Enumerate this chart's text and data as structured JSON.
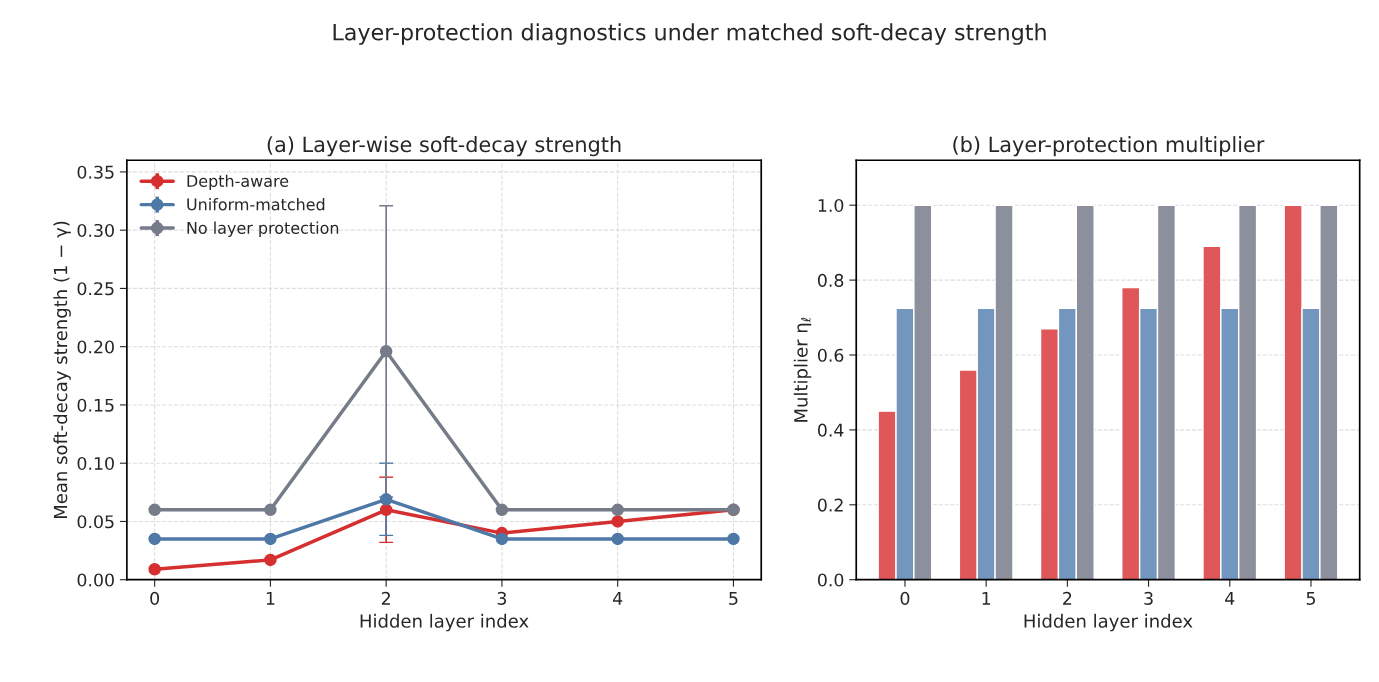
{
  "chart_data": [
    {
      "type": "line",
      "title": "(a) Layer-wise soft-decay strength",
      "annotations": [
        "Layer-protection diagnostics under matched soft-decay strength"
      ],
      "xlabel": "Hidden layer index",
      "ylabel": "Mean soft-decay strength (1 − γ)",
      "x": [
        0,
        1,
        2,
        3,
        4,
        5
      ],
      "xlim": [
        -0.24,
        5.24
      ],
      "xticks": [
        0,
        1,
        2,
        3,
        4,
        5
      ],
      "ylim": [
        0,
        0.36
      ],
      "yticks": [
        {
          "value": 0,
          "label": "0.00"
        },
        0.05,
        {
          "value": 0.1,
          "label": "0.10"
        },
        0.15,
        {
          "value": 0.2,
          "label": "0.20"
        },
        0.25,
        {
          "value": 0.3,
          "label": "0.30"
        },
        0.35
      ],
      "grid": true,
      "legend": "top left",
      "marker": "circle",
      "line_style": "solid",
      "series": [
        {
          "name": "Depth-aware",
          "color": "#d62f2f",
          "values": [
            0.009,
            0.017,
            0.06,
            0.04,
            0.05,
            0.06
          ],
          "errors": [
            null,
            null,
            0.028,
            null,
            null,
            null
          ]
        },
        {
          "name": "Uniform-matched",
          "color": "#4e79a7",
          "values": [
            0.035,
            0.035,
            0.069,
            0.035,
            0.035,
            0.035
          ],
          "errors": [
            null,
            null,
            0.031,
            null,
            null,
            null
          ]
        },
        {
          "name": "No layer protection",
          "color": "#767b89",
          "values": [
            0.06,
            0.06,
            0.196,
            0.06,
            0.06,
            0.06
          ],
          "errors": [
            null,
            null,
            0.125,
            null,
            null,
            null
          ]
        }
      ]
    },
    {
      "type": "bar",
      "title": "(b) Layer-protection multiplier",
      "xlabel": "Hidden layer index",
      "ylabel": "Multiplier η$_{ℓ}$",
      "categories": [
        "0",
        "1",
        "2",
        "3",
        "4",
        "5"
      ],
      "ylim": [
        0,
        1.12
      ],
      "yticks": [
        {
          "value": 0,
          "label": "0.0"
        },
        0.2,
        0.4,
        0.6,
        0.8,
        {
          "value": 1,
          "label": "1.0"
        }
      ],
      "grid": "y",
      "legend": false,
      "series": [
        {
          "color": "#e05759",
          "values": [
            0.45,
            0.56,
            0.67,
            0.78,
            0.89,
            1.0
          ]
        },
        {
          "color": "#7296bd",
          "values": [
            0.725,
            0.725,
            0.725,
            0.725,
            0.725,
            0.725
          ]
        },
        {
          "color": "#8b909c",
          "values": [
            1.0,
            1.0,
            1.0,
            1.0,
            1.0,
            1.0
          ]
        }
      ]
    }
  ]
}
